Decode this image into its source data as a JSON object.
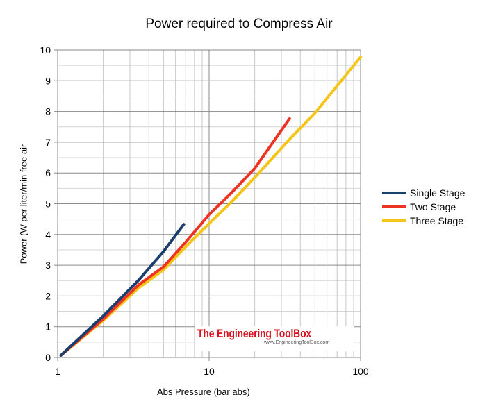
{
  "chart_data": {
    "type": "line",
    "title": "Power required to Compress Air",
    "xlabel": "Abs Pressure (bar abs)",
    "ylabel": "Power (W per liter/min free air",
    "xscale": "log",
    "xlim": [
      1,
      100
    ],
    "ylim": [
      0,
      10
    ],
    "x_ticks": [
      "1",
      "10",
      "100"
    ],
    "y_ticks": [
      "0",
      "1",
      "2",
      "3",
      "4",
      "5",
      "6",
      "7",
      "8",
      "9",
      "10"
    ],
    "grid": true,
    "legend_position": "right",
    "series": [
      {
        "name": "Single Stage",
        "color": "#1b3e6e",
        "x": [
          1.05,
          2,
          3.4,
          5,
          6.8
        ],
        "y": [
          0.07,
          1.35,
          2.5,
          3.45,
          4.33
        ]
      },
      {
        "name": "Two Stage",
        "color": "#ee3322",
        "x": [
          1.05,
          2,
          3.4,
          5,
          7,
          10,
          14,
          20,
          34
        ],
        "y": [
          0.07,
          1.25,
          2.35,
          2.95,
          3.75,
          4.65,
          5.35,
          6.15,
          7.77
        ]
      },
      {
        "name": "Three Stage",
        "color": "#f5c518",
        "x": [
          1.05,
          2,
          3.4,
          5,
          7,
          10,
          14,
          20,
          34,
          50,
          100
        ],
        "y": [
          0.07,
          1.2,
          2.25,
          2.85,
          3.6,
          4.36,
          5.05,
          5.85,
          7.1,
          7.95,
          9.77
        ]
      }
    ]
  },
  "watermark": {
    "title": "The Engineering ToolBox",
    "url": "www.EngineeringToolBox.com"
  }
}
